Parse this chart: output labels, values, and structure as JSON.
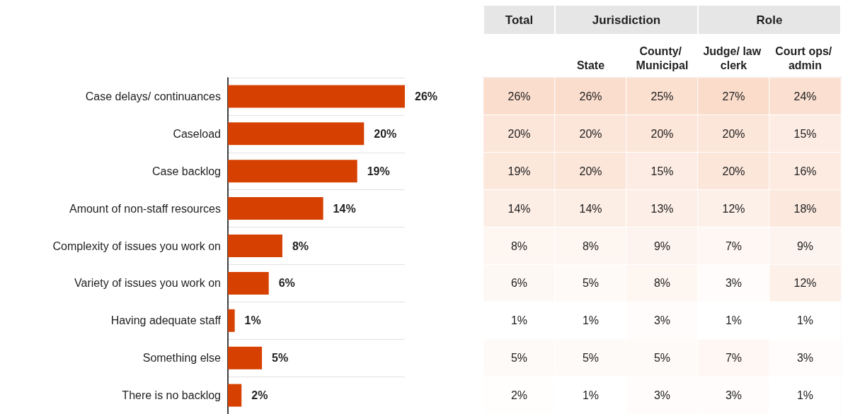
{
  "chart_data": [
    {
      "type": "bar",
      "orientation": "horizontal",
      "categories": [
        "Case delays/ continuances",
        "Caseload",
        "Case backlog",
        "Amount of non-staff resources",
        "Complexity of issues you work on",
        "Variety of issues you work on",
        "Having adequate staff",
        "Something else",
        "There is no backlog"
      ],
      "values": [
        26,
        20,
        19,
        14,
        8,
        6,
        1,
        5,
        2
      ],
      "value_labels": [
        "26%",
        "20%",
        "19%",
        "14%",
        "8%",
        "6%",
        "1%",
        "5%",
        "2%"
      ],
      "color": "#d64000"
    },
    {
      "type": "heatmap",
      "categories": [
        null,
        "State",
        "County/ Municipal",
        "Judge/ law clerk",
        "Court ops/ admin"
      ],
      "y_categories": [
        null,
        null,
        null,
        null,
        null,
        null,
        null,
        null,
        null
      ],
      "tick_labels": "x",
      "annotations": [
        "Total",
        "Jurisdiction",
        "Role"
      ],
      "cells": [
        [
          26,
          26,
          25,
          27,
          24
        ],
        [
          20,
          20,
          20,
          20,
          15
        ],
        [
          19,
          20,
          15,
          20,
          16
        ],
        [
          14,
          14,
          13,
          12,
          18
        ],
        [
          8,
          8,
          9,
          7,
          9
        ],
        [
          6,
          5,
          8,
          3,
          12
        ],
        [
          1,
          1,
          3,
          1,
          1
        ],
        [
          5,
          5,
          5,
          7,
          3
        ],
        [
          2,
          1,
          3,
          3,
          1
        ]
      ],
      "cell_labels": [
        [
          "26%",
          "26%",
          "25%",
          "27%",
          "24%"
        ],
        [
          "20%",
          "20%",
          "20%",
          "20%",
          "15%"
        ],
        [
          "19%",
          "20%",
          "15%",
          "20%",
          "16%"
        ],
        [
          "14%",
          "14%",
          "13%",
          "12%",
          "18%"
        ],
        [
          "8%",
          "8%",
          "9%",
          "7%",
          "9%"
        ],
        [
          "6%",
          "5%",
          "8%",
          "3%",
          "12%"
        ],
        [
          "1%",
          "1%",
          "3%",
          "1%",
          "1%"
        ],
        [
          "5%",
          "5%",
          "5%",
          "7%",
          "3%"
        ],
        [
          "2%",
          "1%",
          "3%",
          "3%",
          "1%"
        ]
      ]
    }
  ]
}
